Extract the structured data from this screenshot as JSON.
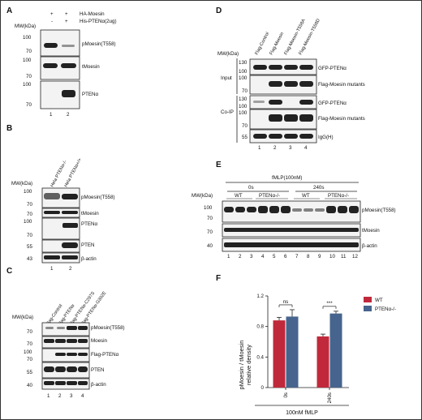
{
  "panels": [
    "A",
    "B",
    "C",
    "D",
    "E",
    "F"
  ],
  "mw_label": "MW(kDa)",
  "A": {
    "conditions": [
      {
        "label": "HA-Moesin",
        "signs": [
          "+",
          "+"
        ]
      },
      {
        "label": "His-PTENα(2ug)",
        "signs": [
          "-",
          "+"
        ]
      }
    ],
    "blots": [
      {
        "label": "pMoesin(T558)",
        "mw": [
          "100",
          "70"
        ]
      },
      {
        "label": "tMoesin",
        "mw": [
          "100",
          "70"
        ]
      },
      {
        "label": "PTENα",
        "mw": [
          "100",
          "70"
        ]
      }
    ],
    "lanes": [
      "1",
      "2"
    ]
  },
  "B": {
    "headers": [
      "Hela PTENα-/-",
      "Hela PTENα+/+"
    ],
    "blots": [
      {
        "label": "pMoesin(T558)",
        "mw": [
          "100",
          "70"
        ]
      },
      {
        "label": "tMoesin",
        "mw": [
          "70"
        ]
      },
      {
        "label": "PTENα",
        "mw": [
          "100",
          "70"
        ]
      },
      {
        "label": "PTEN",
        "mw": [
          "55"
        ]
      },
      {
        "label": "β-actin",
        "mw": [
          "43"
        ]
      }
    ],
    "lanes": [
      "1",
      "2"
    ]
  },
  "C": {
    "headers": [
      "Flag-Control",
      "Flag-PTENα",
      "Flag-PTENα-C297S",
      "Flag-PTENα-G302E"
    ],
    "blots": [
      {
        "label": "pMoesin(T558)",
        "mw": [
          "70"
        ]
      },
      {
        "label": "Moesin",
        "mw": [
          "70"
        ]
      },
      {
        "label": "Flag-PTENα",
        "mw": [
          "100",
          "70"
        ]
      },
      {
        "label": "PTEN",
        "mw": [
          "55"
        ]
      },
      {
        "label": "β-actin",
        "mw": [
          "40"
        ]
      }
    ],
    "lanes": [
      "1",
      "2",
      "3",
      "4"
    ]
  },
  "D": {
    "headers": [
      "Flag-Control",
      "Flag-Moesin",
      "Flag-Moesin-T558A",
      "Flag-Moesin-T558D"
    ],
    "groups": [
      "Input",
      "Co-IP"
    ],
    "blots": [
      {
        "label": "GFP-PTENα",
        "mw": [
          "130",
          "100"
        ]
      },
      {
        "label": "Flag-Moesin mutants",
        "mw": [
          "100",
          "70"
        ]
      },
      {
        "label": "GFP-PTENα",
        "mw": [
          "130",
          "100"
        ]
      },
      {
        "label": "Flag-Moesin mutants",
        "mw": [
          "100",
          "70"
        ]
      },
      {
        "label": "IgG(H)",
        "mw": [
          "55"
        ]
      }
    ],
    "lanes": [
      "1",
      "2",
      "3",
      "4"
    ]
  },
  "E": {
    "treatment": "fMLP(100nM)",
    "times": [
      "0s",
      "240s"
    ],
    "genotypes": [
      "WT",
      "PTENα-/-",
      "WT",
      "PTENα-/-"
    ],
    "blots": [
      {
        "label": "pMoesin(T558)",
        "mw": [
          "100",
          "70"
        ]
      },
      {
        "label": "tMoesin",
        "mw": [
          "70"
        ]
      },
      {
        "label": "β-actin",
        "mw": [
          "40"
        ]
      }
    ],
    "lanes": [
      "1",
      "2",
      "3",
      "4",
      "5",
      "6",
      "7",
      "8",
      "9",
      "10",
      "11",
      "12"
    ]
  },
  "chart_data": {
    "type": "bar",
    "categories": [
      "0s",
      "240s"
    ],
    "series": [
      {
        "name": "WT",
        "values": [
          0.88,
          0.67
        ],
        "errors": [
          0.04,
          0.03
        ],
        "color": "#c0293b"
      },
      {
        "name": "PTENα-/-",
        "values": [
          0.93,
          0.97
        ],
        "errors": [
          0.09,
          0.03
        ],
        "color": "#46648e"
      }
    ],
    "ylabel_line1": "pMoesin / tMoesin",
    "ylabel_line2": "relative density",
    "xlabel": "100nM fMLP",
    "yticks": [
      "0",
      "0.4",
      "0.8",
      "1.2"
    ],
    "ylim": [
      0,
      1.2
    ],
    "significance": [
      "ns",
      "***"
    ],
    "legend": "top-right"
  }
}
